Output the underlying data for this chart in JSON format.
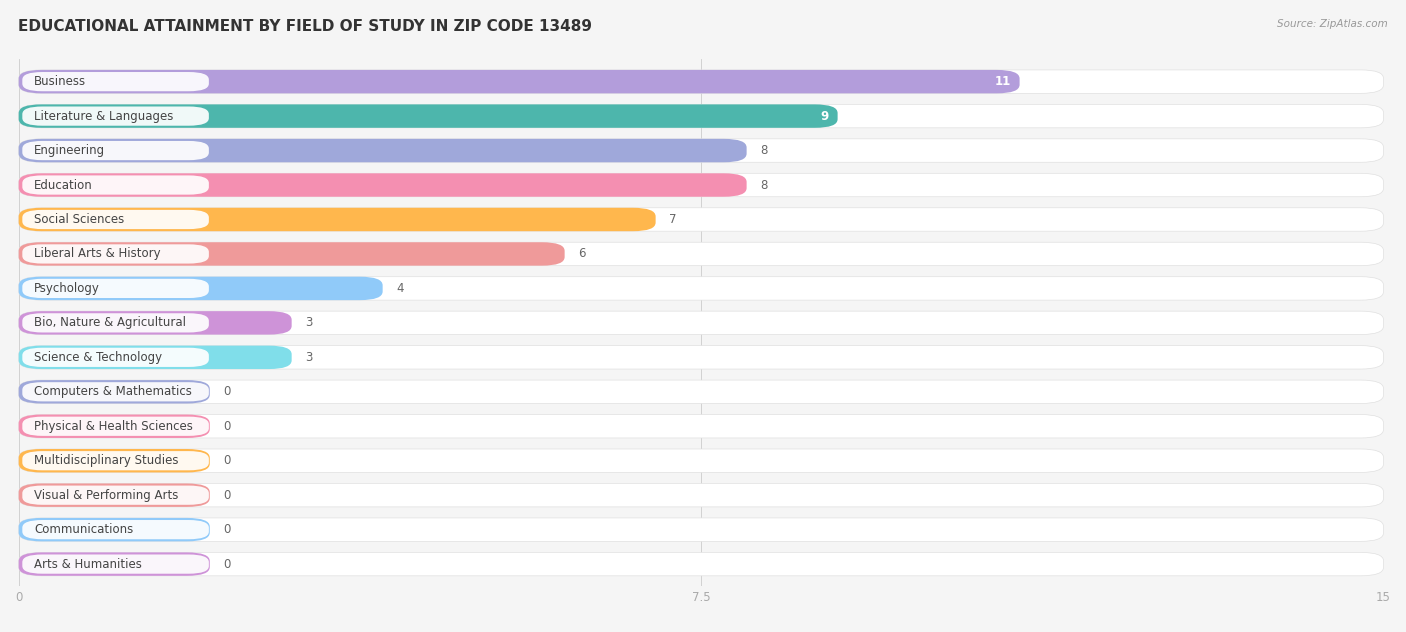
{
  "title": "EDUCATIONAL ATTAINMENT BY FIELD OF STUDY IN ZIP CODE 13489",
  "source": "Source: ZipAtlas.com",
  "categories": [
    "Business",
    "Literature & Languages",
    "Engineering",
    "Education",
    "Social Sciences",
    "Liberal Arts & History",
    "Psychology",
    "Bio, Nature & Agricultural",
    "Science & Technology",
    "Computers & Mathematics",
    "Physical & Health Sciences",
    "Multidisciplinary Studies",
    "Visual & Performing Arts",
    "Communications",
    "Arts & Humanities"
  ],
  "values": [
    11,
    9,
    8,
    8,
    7,
    6,
    4,
    3,
    3,
    0,
    0,
    0,
    0,
    0,
    0
  ],
  "bar_colors": [
    "#b39ddb",
    "#4db6ac",
    "#9fa8da",
    "#f48fb1",
    "#ffb74d",
    "#ef9a9a",
    "#90caf9",
    "#ce93d8",
    "#80deea",
    "#9fa8da",
    "#f48fb1",
    "#ffb74d",
    "#ef9a9a",
    "#90caf9",
    "#ce93d8"
  ],
  "xlim": [
    0,
    15
  ],
  "xticks": [
    0,
    7.5,
    15
  ],
  "background_color": "#f5f5f5",
  "row_bg_color": "#ebebeb",
  "title_fontsize": 11,
  "label_fontsize": 8.5,
  "value_fontsize": 8.5
}
